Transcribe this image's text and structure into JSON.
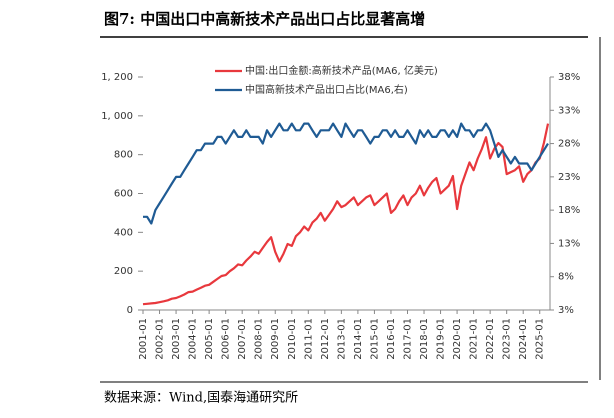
{
  "chart_data": {
    "type": "line",
    "title": "图7: 中国出口中高新技术产品出口占比显著高增",
    "source": "数据来源：Wind,国泰海通研究所",
    "categories": [
      "2001-01",
      null,
      null,
      null,
      "2002-01",
      null,
      null,
      null,
      "2003-01",
      null,
      null,
      null,
      "2004-01",
      null,
      null,
      null,
      "2005-01",
      null,
      null,
      null,
      "2006-01",
      null,
      null,
      null,
      "2007-01",
      null,
      null,
      null,
      "2008-01",
      null,
      null,
      null,
      "2009-01",
      null,
      null,
      null,
      "2010-01",
      null,
      null,
      null,
      "2011-01",
      null,
      null,
      null,
      "2012-01",
      null,
      null,
      null,
      "2013-01",
      null,
      null,
      null,
      "2014-01",
      null,
      null,
      null,
      "2015-01",
      null,
      null,
      null,
      "2016-01",
      null,
      null,
      null,
      "2017-01",
      null,
      null,
      null,
      "2018-01",
      null,
      null,
      null,
      "2019-01",
      null,
      null,
      null,
      "2020-01",
      null,
      null,
      null,
      "2021-01",
      null,
      null,
      null,
      "2022-01",
      null,
      null,
      null,
      "2023-01",
      null,
      null,
      null,
      "2024-01",
      null,
      null,
      null,
      "2025-01",
      null,
      null
    ],
    "series": [
      {
        "name": "中国:出口金额:高新技术产品(MA6, 亿美元)",
        "color": "#e8383d",
        "axis": "y",
        "values": [
          30,
          32,
          34,
          36,
          40,
          45,
          50,
          58,
          62,
          70,
          80,
          92,
          95,
          105,
          115,
          125,
          130,
          145,
          160,
          175,
          180,
          200,
          215,
          235,
          230,
          255,
          275,
          300,
          290,
          320,
          350,
          375,
          300,
          250,
          290,
          340,
          330,
          380,
          400,
          430,
          410,
          450,
          470,
          500,
          460,
          490,
          520,
          560,
          530,
          540,
          560,
          580,
          540,
          560,
          580,
          590,
          540,
          560,
          580,
          600,
          500,
          520,
          560,
          590,
          540,
          580,
          600,
          640,
          590,
          630,
          660,
          680,
          600,
          620,
          640,
          690,
          520,
          640,
          700,
          760,
          720,
          780,
          830,
          890,
          780,
          830,
          860,
          840,
          700,
          710,
          720,
          740,
          660,
          700,
          720,
          760,
          780,
          860,
          960
        ]
      },
      {
        "name": "中国高新技术产品出口占比(MA6,右)",
        "color": "#1f5b94",
        "axis": "y2",
        "values": [
          17,
          17,
          16,
          18,
          19,
          20,
          21,
          22,
          23,
          23,
          24,
          25,
          26,
          27,
          27,
          28,
          28,
          28,
          29,
          29,
          28,
          29,
          30,
          29,
          29,
          30,
          29,
          29,
          29,
          28,
          30,
          29,
          30,
          31,
          30,
          30,
          31,
          30,
          30,
          31,
          31,
          30,
          29,
          30,
          30,
          30,
          31,
          30,
          29,
          31,
          30,
          29,
          30,
          30,
          29,
          28,
          29,
          29,
          30,
          30,
          29,
          30,
          29,
          29,
          30,
          29,
          28,
          30,
          29,
          30,
          29,
          29,
          30,
          30,
          29,
          30,
          29,
          31,
          30,
          30,
          29,
          30,
          30,
          31,
          30,
          28,
          26,
          27,
          26,
          25,
          26,
          25,
          25,
          25,
          24,
          25,
          26,
          27,
          28
        ]
      }
    ],
    "ylim": [
      0,
      1200
    ],
    "yticks": [
      0,
      200,
      400,
      600,
      800,
      {
        "value": 1000,
        "label": "1, 000"
      },
      {
        "value": 1200,
        "label": "1, 200"
      }
    ],
    "y2lim": [
      3,
      38
    ],
    "y2ticks": [
      {
        "value": 3,
        "label": "3%"
      },
      {
        "value": 8,
        "label": "8%"
      },
      {
        "value": 13,
        "label": "13%"
      },
      {
        "value": 18,
        "label": "18%"
      },
      {
        "value": 23,
        "label": "23%"
      },
      {
        "value": 28,
        "label": "28%"
      },
      {
        "value": 33,
        "label": "33%"
      },
      {
        "value": 38,
        "label": "38%"
      }
    ],
    "grid": false
  }
}
